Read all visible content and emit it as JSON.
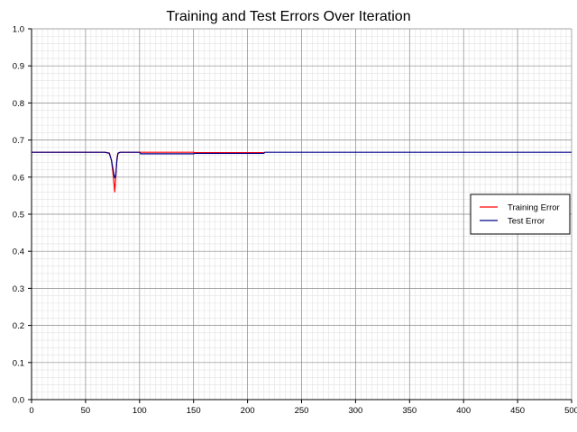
{
  "chart_data": {
    "type": "line",
    "title": "Training and Test Errors Over Iteration",
    "xlabel": "",
    "ylabel": "",
    "xlim": [
      0,
      500
    ],
    "ylim": [
      0,
      1.0
    ],
    "x_ticks": [
      0,
      50,
      100,
      150,
      200,
      250,
      300,
      350,
      400,
      450,
      500
    ],
    "y_ticks": [
      0.0,
      0.1,
      0.2,
      0.3,
      0.4,
      0.5,
      0.6,
      0.7,
      0.8,
      0.9,
      1.0
    ],
    "x_tick_labels": [
      "0",
      "50",
      "100",
      "150",
      "200",
      "250",
      "300",
      "350",
      "400",
      "450",
      "500"
    ],
    "y_tick_labels": [
      "0.0",
      "0.1",
      "0.2",
      "0.3",
      "0.4",
      "0.5",
      "0.6",
      "0.7",
      "0.8",
      "0.9",
      "1.0"
    ],
    "grid": true,
    "legend_position": "right",
    "series": [
      {
        "name": "Training Error",
        "color": "#ff0000",
        "x": [
          0,
          68,
          72,
          74,
          76,
          77,
          78,
          79,
          80,
          82,
          100,
          101,
          150,
          151,
          215
        ],
        "y": [
          0.667,
          0.667,
          0.665,
          0.645,
          0.595,
          0.56,
          0.6,
          0.65,
          0.665,
          0.667,
          0.667,
          0.667,
          0.667,
          0.666,
          0.666
        ]
      },
      {
        "name": "Test Error",
        "color": "#00008b",
        "x": [
          0,
          68,
          72,
          74,
          76,
          77,
          78,
          79,
          80,
          82,
          100,
          101,
          150,
          151,
          215,
          216,
          500
        ],
        "y": [
          0.667,
          0.667,
          0.664,
          0.645,
          0.612,
          0.598,
          0.605,
          0.645,
          0.664,
          0.667,
          0.667,
          0.663,
          0.663,
          0.664,
          0.664,
          0.667,
          0.667
        ]
      }
    ]
  }
}
